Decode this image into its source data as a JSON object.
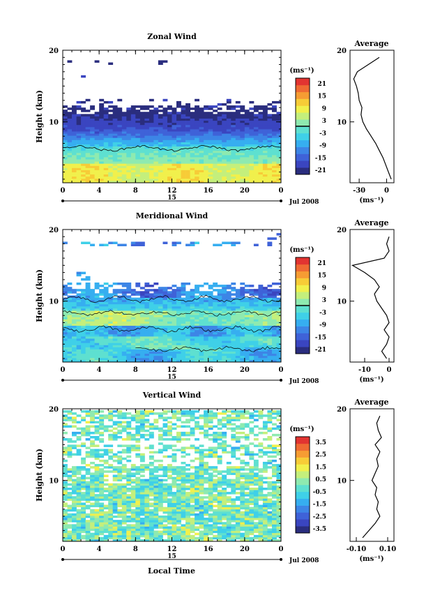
{
  "page": {
    "date_label": "Jul 2008",
    "xaxis_label": "Local Time"
  },
  "palette": [
    "#2a2d7e",
    "#3a45c0",
    "#3f62d8",
    "#3d85e6",
    "#36aef0",
    "#3fd0e8",
    "#5ee0d0",
    "#8eeab0",
    "#c4ef7c",
    "#f1f04c",
    "#f7cc37",
    "#f69c33",
    "#ef6a33",
    "#e23431"
  ],
  "chart_data": [
    {
      "type": "heatmap",
      "title": "Zonal Wind",
      "ylabel": "Height (km)",
      "x_ticks": [
        "0",
        "4",
        "8",
        "12",
        "16",
        "20",
        "0"
      ],
      "x_sub": "15",
      "y_ticks": [
        "20",
        "10"
      ],
      "xlim": [
        0,
        24
      ],
      "ylim": [
        1.5,
        20
      ],
      "colorbar": {
        "unit": "(ms⁻¹)",
        "labels": [
          "21",
          "15",
          "9",
          "3",
          "-3",
          "-9",
          "-15",
          "-21"
        ],
        "range": [
          -24,
          24
        ],
        "zero_line": true
      },
      "profile": {
        "title": "Average",
        "xlabel": "(ms⁻¹)",
        "x_ticks": [
          "-30",
          "0"
        ],
        "xlim": [
          -40,
          8
        ],
        "height": [
          2,
          3,
          4,
          5,
          6,
          7,
          8,
          9,
          10,
          11,
          12,
          13,
          14,
          15,
          16,
          17,
          18,
          19
        ],
        "value": [
          5,
          2,
          -1,
          -4,
          -8,
          -12,
          -17,
          -22,
          -26,
          -28,
          -27,
          -30,
          -31,
          -33,
          -36,
          -32,
          -20,
          -8
        ]
      }
    },
    {
      "type": "heatmap",
      "title": "Meridional Wind",
      "ylabel": "Height (km)",
      "x_ticks": [
        "0",
        "4",
        "8",
        "12",
        "16",
        "20",
        "0"
      ],
      "x_sub": "15",
      "y_ticks": [
        "20",
        "10"
      ],
      "xlim": [
        0,
        24
      ],
      "ylim": [
        1.5,
        20
      ],
      "colorbar": {
        "unit": "(ms⁻¹)",
        "labels": [
          "21",
          "15",
          "9",
          "3",
          "-3",
          "-9",
          "-15",
          "-21"
        ],
        "range": [
          -24,
          24
        ],
        "zero_line": true
      },
      "profile": {
        "title": "Average",
        "xlabel": "(ms⁻¹)",
        "x_ticks": [
          "-10",
          "0"
        ],
        "xlim": [
          -16,
          2
        ],
        "height": [
          2,
          3,
          4,
          5,
          6,
          7,
          8,
          9,
          10,
          11,
          12,
          13,
          14,
          15,
          16,
          17,
          18,
          19
        ],
        "value": [
          -1,
          -3,
          -1,
          0,
          -2,
          0,
          -1,
          -3,
          -5,
          -6,
          -4,
          -6,
          -10,
          -15,
          -2,
          0,
          -1,
          0
        ]
      }
    },
    {
      "type": "heatmap",
      "title": "Vertical Wind",
      "ylabel": "Height (km)",
      "x_ticks": [
        "0",
        "4",
        "8",
        "12",
        "16",
        "20",
        "0"
      ],
      "x_sub": "15",
      "y_ticks": [
        "20",
        "10"
      ],
      "xlim": [
        0,
        24
      ],
      "ylim": [
        1.5,
        20
      ],
      "colorbar": {
        "unit": "(ms⁻¹)",
        "labels": [
          "3.5",
          "2.5",
          "1.5",
          "0.5",
          "-0.5",
          "-1.5",
          "-2.5",
          "-3.5"
        ],
        "range": [
          -4,
          4
        ],
        "zero_line": false
      },
      "profile": {
        "title": "Average",
        "xlabel": "(ms⁻¹)",
        "x_ticks": [
          "-0.10",
          "0.10"
        ],
        "xlim": [
          -0.14,
          0.14
        ],
        "height": [
          2,
          3,
          4,
          5,
          6,
          7,
          8,
          9,
          10,
          11,
          12,
          13,
          14,
          15,
          16,
          17,
          18,
          19
        ],
        "value": [
          -0.06,
          -0.02,
          0.02,
          0.05,
          0.03,
          0.04,
          0.02,
          0.03,
          0.0,
          0.02,
          0.04,
          0.03,
          0.05,
          0.02,
          0.06,
          0.04,
          0.03,
          0.05
        ]
      }
    }
  ]
}
